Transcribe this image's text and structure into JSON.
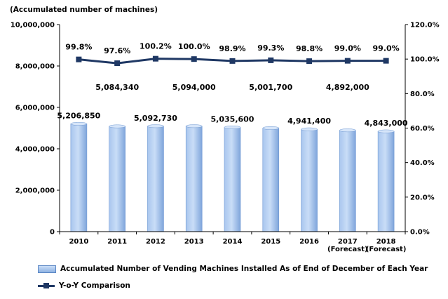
{
  "chart_data": {
    "type": "bar",
    "unit_label": "(Accumulated number of machines)",
    "categories": [
      "2010",
      "2011",
      "2012",
      "2013",
      "2014",
      "2015",
      "2016",
      "2017\n(Forecast)",
      "2018\n(Forecast)"
    ],
    "series": [
      {
        "name": "Accumulated Number of Vending Machines Installed As of  End of December of Each Year",
        "type": "bar",
        "axis": "left",
        "values": [
          5206850,
          5084340,
          5092730,
          5094000,
          5035600,
          5001700,
          4941400,
          4892000,
          4843000
        ],
        "labels": [
          "5,206,850",
          "5,084,340",
          "5,092,730",
          "5,094,000",
          "5,035,600",
          "5,001,700",
          "4,941,400",
          "4,892,000",
          "4,843,000"
        ],
        "color": "#9dbde8"
      },
      {
        "name": "Y-o-Y Comparison",
        "type": "line",
        "axis": "right",
        "values": [
          99.8,
          97.6,
          100.2,
          100.0,
          98.9,
          99.3,
          98.8,
          99.0,
          99.0
        ],
        "labels": [
          "99.8%",
          "97.6%",
          "100.2%",
          "100.0%",
          "98.9%",
          "99.3%",
          "98.8%",
          "99.0%",
          "99.0%"
        ],
        "color": "#1f3864"
      }
    ],
    "y_left": {
      "min": 0,
      "max": 10000000,
      "ticks": [
        "0",
        "2,000,000",
        "4,000,000",
        "6,000,000",
        "8,000,000",
        "10,000,000"
      ]
    },
    "y_right": {
      "min": 0,
      "max": 120,
      "ticks": [
        "0.0%",
        "20.0%",
        "40.0%",
        "60.0%",
        "80.0%",
        "100.0%",
        "120.0%"
      ]
    },
    "grid": false,
    "legend_position": "bottom-left"
  }
}
